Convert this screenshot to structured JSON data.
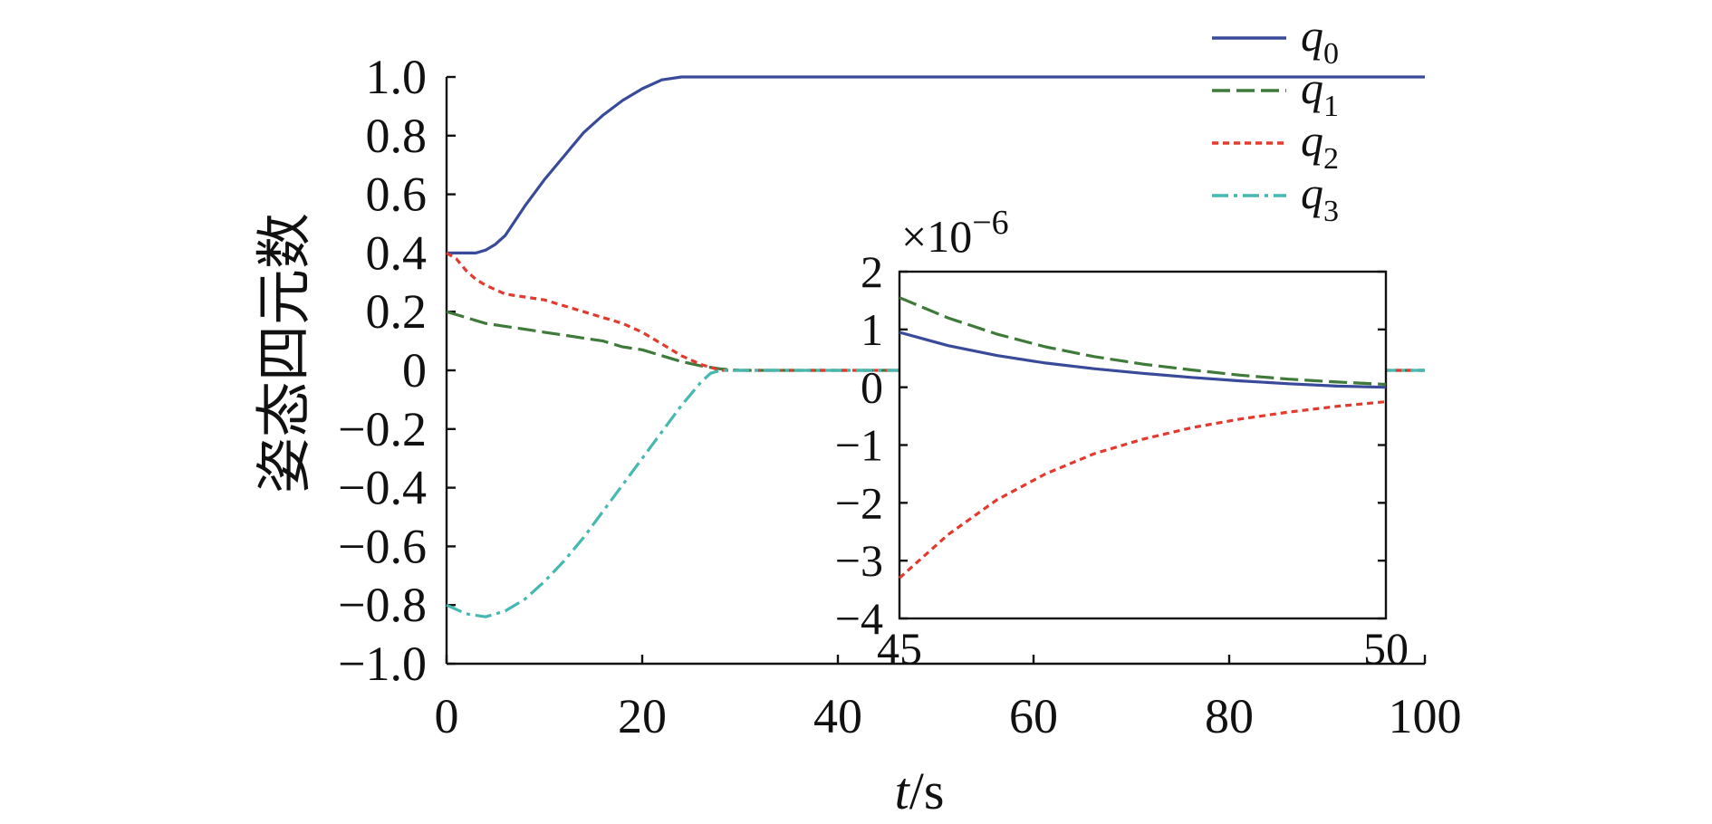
{
  "chart_data": {
    "type": "line",
    "title": "",
    "xlabel_italic": "t",
    "xlabel_unit": "/s",
    "ylabel": "姿态四元数",
    "xlim": [
      0,
      100
    ],
    "ylim": [
      -1.0,
      1.0
    ],
    "x_ticks": [
      "0",
      "20",
      "40",
      "60",
      "80",
      "100"
    ],
    "y_ticks": [
      "1.0",
      "0.8",
      "0.6",
      "0.4",
      "0.2",
      "0",
      "−0.2",
      "−0.4",
      "−0.6",
      "−0.8",
      "−1.0"
    ],
    "legend_position": "top-right",
    "series": [
      {
        "name": "q0",
        "label_base": "q",
        "label_sub": "0",
        "color": "#3a4a9a",
        "style": "solid",
        "x": [
          0,
          2,
          3,
          4,
          5,
          6,
          8,
          10,
          12,
          14,
          16,
          18,
          20,
          22,
          24,
          25,
          100
        ],
        "y": [
          0.4,
          0.4,
          0.4,
          0.41,
          0.43,
          0.46,
          0.56,
          0.65,
          0.73,
          0.81,
          0.87,
          0.92,
          0.96,
          0.99,
          1.0,
          1.0,
          1.0
        ]
      },
      {
        "name": "q1",
        "label_base": "q",
        "label_sub": "1",
        "color": "#3f7a3a",
        "style": "dashed",
        "x": [
          0,
          2,
          4,
          6,
          8,
          10,
          12,
          14,
          16,
          18,
          20,
          22,
          24,
          26,
          28,
          30,
          100
        ],
        "y": [
          0.2,
          0.18,
          0.16,
          0.15,
          0.14,
          0.13,
          0.12,
          0.11,
          0.1,
          0.08,
          0.07,
          0.05,
          0.03,
          0.015,
          0.005,
          0.0,
          0.0
        ]
      },
      {
        "name": "q2",
        "label_base": "q",
        "label_sub": "2",
        "color": "#e23a2e",
        "style": "dotted",
        "x": [
          0,
          1,
          2,
          3,
          4,
          6,
          8,
          10,
          12,
          14,
          16,
          18,
          20,
          22,
          24,
          26,
          28,
          30,
          100
        ],
        "y": [
          0.4,
          0.38,
          0.34,
          0.31,
          0.29,
          0.26,
          0.25,
          0.24,
          0.22,
          0.2,
          0.18,
          0.16,
          0.13,
          0.09,
          0.05,
          0.02,
          0.0,
          0.0,
          0.0
        ]
      },
      {
        "name": "q3",
        "label_base": "q",
        "label_sub": "3",
        "color": "#45b8b0",
        "style": "dashdot",
        "x": [
          0,
          2,
          4,
          6,
          8,
          10,
          12,
          14,
          16,
          18,
          20,
          22,
          24,
          26,
          27,
          28,
          30,
          100
        ],
        "y": [
          -0.8,
          -0.83,
          -0.84,
          -0.82,
          -0.78,
          -0.72,
          -0.65,
          -0.57,
          -0.48,
          -0.39,
          -0.3,
          -0.21,
          -0.12,
          -0.04,
          -0.01,
          0.0,
          0.0,
          0.0
        ]
      }
    ],
    "inset": {
      "xlim": [
        45,
        50
      ],
      "ylim": [
        -4,
        2
      ],
      "scale_label": "×10",
      "scale_exponent": "−6",
      "x_ticks": [
        "45",
        "50"
      ],
      "y_ticks": [
        "2",
        "1",
        "0",
        "−1",
        "−2",
        "−3",
        "−4"
      ],
      "series": [
        {
          "name": "q0",
          "color": "#3a4a9a",
          "style": "solid",
          "x": [
            45,
            45.5,
            46,
            46.5,
            47,
            47.5,
            48,
            48.5,
            49,
            49.5,
            50
          ],
          "y": [
            0.95,
            0.72,
            0.55,
            0.42,
            0.32,
            0.24,
            0.17,
            0.11,
            0.06,
            0.02,
            0.0
          ]
        },
        {
          "name": "q1",
          "color": "#3f7a3a",
          "style": "dashed",
          "x": [
            45,
            45.5,
            46,
            46.5,
            47,
            47.5,
            48,
            48.5,
            49,
            49.5,
            50
          ],
          "y": [
            1.55,
            1.2,
            0.92,
            0.7,
            0.53,
            0.4,
            0.3,
            0.21,
            0.14,
            0.09,
            0.05
          ]
        },
        {
          "name": "q2",
          "color": "#e23a2e",
          "style": "dotted",
          "x": [
            45,
            45.5,
            46,
            46.5,
            47,
            47.5,
            48,
            48.5,
            49,
            49.5,
            50
          ],
          "y": [
            -3.3,
            -2.55,
            -1.95,
            -1.5,
            -1.15,
            -0.9,
            -0.7,
            -0.55,
            -0.43,
            -0.33,
            -0.25
          ]
        }
      ]
    }
  }
}
